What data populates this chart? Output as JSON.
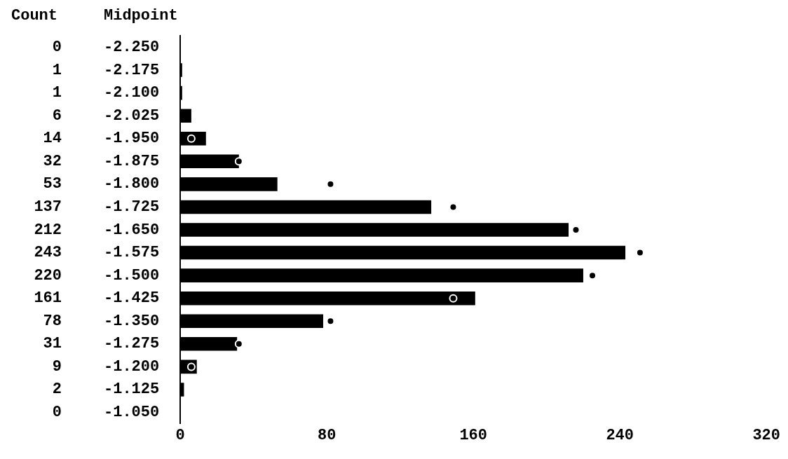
{
  "chart_data": {
    "type": "bar",
    "orientation": "horizontal",
    "ylabel": "Midpoint",
    "annotations": [
      "Count"
    ],
    "categories": [
      "-2.250",
      "-2.175",
      "-2.100",
      "-2.025",
      "-1.950",
      "-1.875",
      "-1.800",
      "-1.725",
      "-1.650",
      "-1.575",
      "-1.500",
      "-1.425",
      "-1.350",
      "-1.275",
      "-1.200",
      "-1.125",
      "-1.050"
    ],
    "series": [
      {
        "color": "#000000",
        "values": [
          0,
          1,
          1,
          6,
          14,
          32,
          53,
          137,
          212,
          243,
          220,
          161,
          78,
          31,
          9,
          2,
          0
        ],
        "value_labels": [
          "0",
          "1",
          "1",
          "6",
          "14",
          "32",
          "53",
          "137",
          "212",
          "243",
          "220",
          "161",
          "78",
          "31",
          "9",
          "2",
          "0"
        ]
      },
      {
        "type": "scatter",
        "color": "#000000",
        "values": [
          null,
          null,
          null,
          null,
          6,
          32,
          82,
          149,
          216,
          251,
          225,
          149,
          82,
          32,
          6,
          null,
          null
        ]
      }
    ],
    "xlim": [
      0,
      320
    ],
    "xticks": [
      0,
      80,
      160,
      240,
      320
    ],
    "grid": false,
    "legend": false,
    "marker": "circle"
  }
}
